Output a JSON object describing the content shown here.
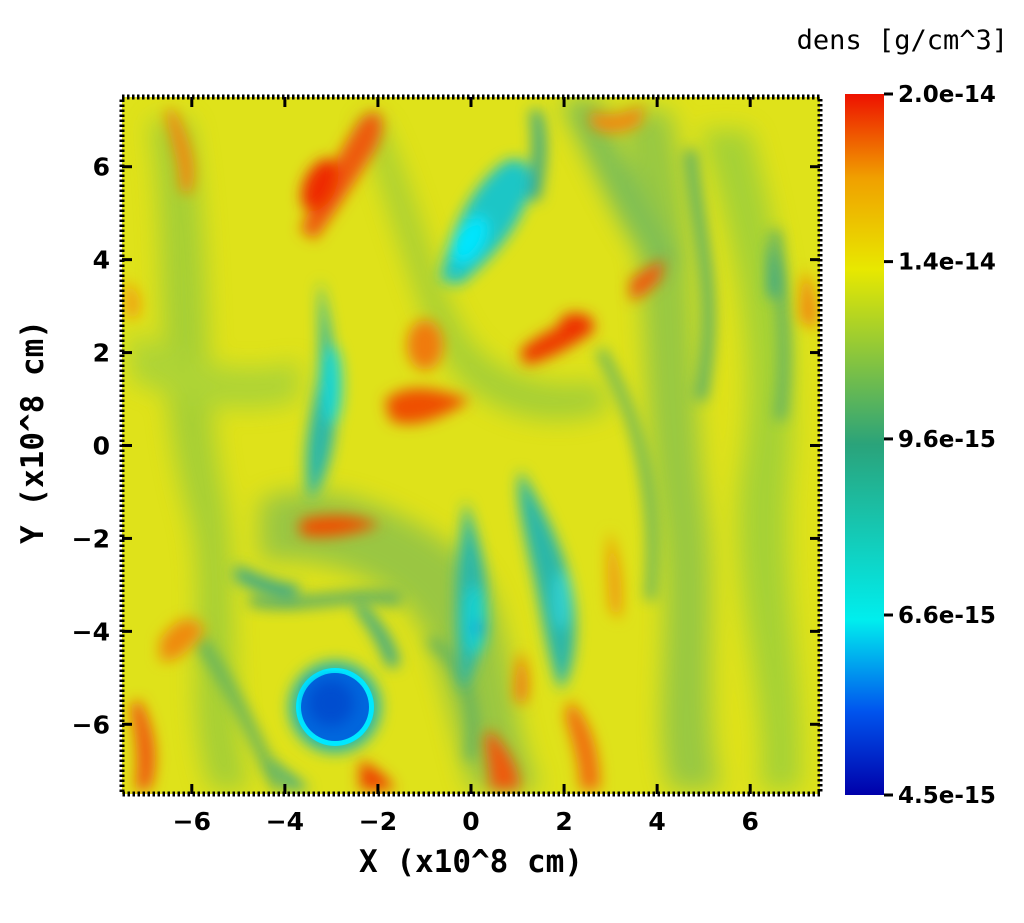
{
  "chart_data": {
    "type": "heatmap",
    "title": "",
    "xlabel": "X (x10^8 cm)",
    "ylabel": "Y (x10^8 cm)",
    "xlim": [
      -7.5,
      7.5
    ],
    "ylim": [
      -7.5,
      7.5
    ],
    "x_ticks": [
      -6,
      -4,
      -2,
      0,
      2,
      4,
      6
    ],
    "y_ticks": [
      -6,
      -4,
      -2,
      0,
      2,
      4,
      6
    ],
    "x_tick_labels": [
      "−6",
      "−4",
      "−2",
      "0",
      "2",
      "4",
      "6"
    ],
    "y_tick_labels": [
      "−6",
      "−4",
      "−2",
      "0",
      "2",
      "4",
      "6"
    ],
    "grid": false,
    "colorbar": {
      "title": "dens [g/cm^3]",
      "min": 4.5e-15,
      "max": 2e-14,
      "tick_values": [
        2e-14,
        1.4e-14,
        9.6e-15,
        6.6e-15,
        4.5e-15
      ],
      "tick_labels": [
        "2.0e-14",
        "1.4e-14",
        "9.6e-15",
        "6.6e-15",
        "4.5e-15"
      ],
      "scale": "log",
      "colormap_stops": [
        "#0000aa",
        "#0055ee",
        "#00eeee",
        "#2aa37a",
        "#e8e800",
        "#f0a000",
        "#ee1100"
      ]
    },
    "features": [
      {
        "kind": "low-density vortex",
        "x": -2.9,
        "y": -5.7,
        "dens": 4.8e-15
      },
      {
        "kind": "low-density filament",
        "x": 0.2,
        "y": 4.7,
        "dens": 7e-15
      },
      {
        "kind": "low-density filament",
        "x": -3.0,
        "y": 1.5,
        "dens": 7.5e-15
      },
      {
        "kind": "low-density filament",
        "x": 0.2,
        "y": -3.8,
        "dens": 7.5e-15
      },
      {
        "kind": "low-density filament",
        "x": 2.0,
        "y": -3.5,
        "dens": 8e-15
      },
      {
        "kind": "high-density filament",
        "x": -3.4,
        "y": 5.8,
        "dens": 1.9e-14
      },
      {
        "kind": "high-density filament",
        "x": 2.0,
        "y": 2.2,
        "dens": 1.8e-14
      },
      {
        "kind": "high-density filament",
        "x": -1.0,
        "y": 0.8,
        "dens": 1.8e-14
      },
      {
        "kind": "high-density filament",
        "x": -6.8,
        "y": -6.5,
        "dens": 1.8e-14
      },
      {
        "kind": "high-density filament",
        "x": 1.2,
        "y": -6.8,
        "dens": 1.7e-14
      }
    ]
  }
}
